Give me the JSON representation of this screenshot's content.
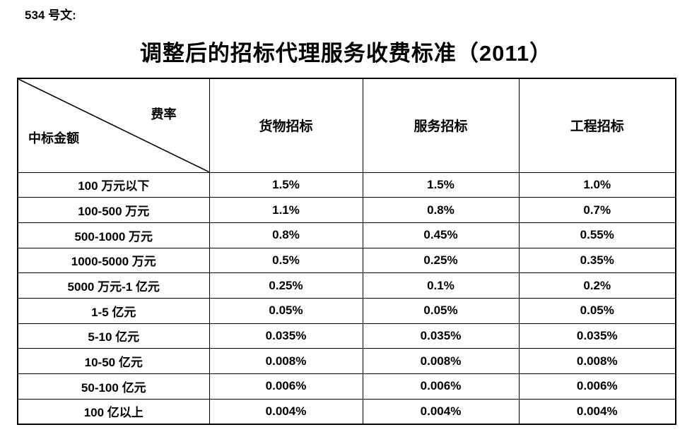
{
  "page": {
    "doc_label": "534 号文:",
    "title": "调整后的招标代理服务收费标准（2011）"
  },
  "table": {
    "corner": {
      "top_right": "费率",
      "bottom_left": "中标金额"
    },
    "columns": [
      "货物招标",
      "服务招标",
      "工程招标"
    ],
    "rows": [
      {
        "amount": "100 万元以下",
        "values": [
          "1.5%",
          "1.5%",
          "1.0%"
        ]
      },
      {
        "amount": "100-500 万元",
        "values": [
          "1.1%",
          "0.8%",
          "0.7%"
        ]
      },
      {
        "amount": "500-1000 万元",
        "values": [
          "0.8%",
          "0.45%",
          "0.55%"
        ]
      },
      {
        "amount": "1000-5000 万元",
        "values": [
          "0.5%",
          "0.25%",
          "0.35%"
        ]
      },
      {
        "amount": "5000 万元-1 亿元",
        "values": [
          "0.25%",
          "0.1%",
          "0.2%"
        ]
      },
      {
        "amount": "1-5 亿元",
        "values": [
          "0.05%",
          "0.05%",
          "0.05%"
        ]
      },
      {
        "amount": "5-10 亿元",
        "values": [
          "0.035%",
          "0.035%",
          "0.035%"
        ]
      },
      {
        "amount": "10-50 亿元",
        "values": [
          "0.008%",
          "0.008%",
          "0.008%"
        ]
      },
      {
        "amount": "50-100 亿元",
        "values": [
          "0.006%",
          "0.006%",
          "0.006%"
        ]
      },
      {
        "amount": "100 亿以上",
        "values": [
          "0.004%",
          "0.004%",
          "0.004%"
        ]
      }
    ]
  },
  "colors": {
    "text": "#000000",
    "border": "#000000",
    "background": "#ffffff"
  }
}
